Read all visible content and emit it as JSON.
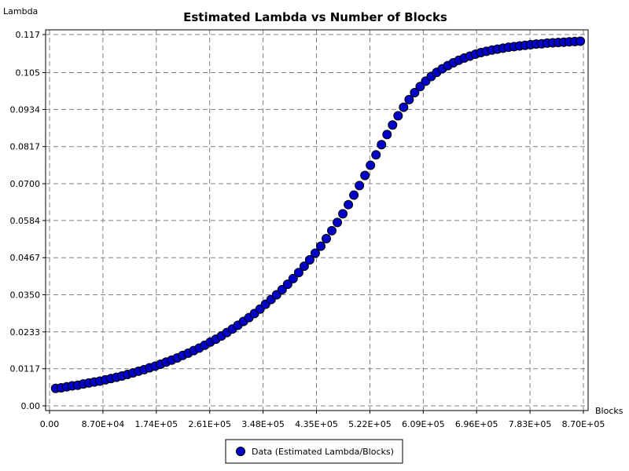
{
  "chart_data": {
    "type": "scatter",
    "title": "Estimated Lambda vs Number of Blocks",
    "xlabel": "Blocks",
    "ylabel": "Lambda",
    "xlim": [
      0,
      870000
    ],
    "ylim": [
      0,
      0.117
    ],
    "x_ticks": [
      {
        "value": 0,
        "label": "0.00"
      },
      {
        "value": 87000,
        "label": "8.70E+04"
      },
      {
        "value": 174000,
        "label": "1.74E+05"
      },
      {
        "value": 261000,
        "label": "2.61E+05"
      },
      {
        "value": 348000,
        "label": "3.48E+05"
      },
      {
        "value": 435000,
        "label": "4.35E+05"
      },
      {
        "value": 522000,
        "label": "5.22E+05"
      },
      {
        "value": 609000,
        "label": "6.09E+05"
      },
      {
        "value": 696000,
        "label": "6.96E+05"
      },
      {
        "value": 783000,
        "label": "7.83E+05"
      },
      {
        "value": 870000,
        "label": "8.70E+05"
      }
    ],
    "y_ticks": [
      {
        "value": 0.0,
        "label": "0.00"
      },
      {
        "value": 0.0117,
        "label": "0.0117"
      },
      {
        "value": 0.0233,
        "label": "0.0233"
      },
      {
        "value": 0.035,
        "label": "0.0350"
      },
      {
        "value": 0.0467,
        "label": "0.0467"
      },
      {
        "value": 0.0584,
        "label": "0.0584"
      },
      {
        "value": 0.07,
        "label": "0.0700"
      },
      {
        "value": 0.0817,
        "label": "0.0817"
      },
      {
        "value": 0.0934,
        "label": "0.0934"
      },
      {
        "value": 0.105,
        "label": "0.105"
      },
      {
        "value": 0.117,
        "label": "0.117"
      }
    ],
    "grid": true,
    "legend_position": "bottom-center",
    "series": [
      {
        "name": "Data (Estimated Lambda/Blocks)",
        "color": "#0000c8",
        "marker": "circle",
        "points": [
          [
            10000,
            0.0055
          ],
          [
            19000,
            0.0057
          ],
          [
            28000,
            0.006
          ],
          [
            37000,
            0.0063
          ],
          [
            46000,
            0.0065
          ],
          [
            55000,
            0.0069
          ],
          [
            64000,
            0.0072
          ],
          [
            73000,
            0.0075
          ],
          [
            82000,
            0.0078
          ],
          [
            91000,
            0.0082
          ],
          [
            100000,
            0.0086
          ],
          [
            109000,
            0.009
          ],
          [
            118000,
            0.0094
          ],
          [
            127000,
            0.0099
          ],
          [
            136000,
            0.0104
          ],
          [
            145000,
            0.0109
          ],
          [
            154000,
            0.0114
          ],
          [
            163000,
            0.012
          ],
          [
            172000,
            0.0125
          ],
          [
            181000,
            0.0131
          ],
          [
            190000,
            0.0138
          ],
          [
            199000,
            0.0144
          ],
          [
            208000,
            0.0151
          ],
          [
            217000,
            0.0159
          ],
          [
            226000,
            0.0166
          ],
          [
            235000,
            0.0174
          ],
          [
            244000,
            0.0182
          ],
          [
            253000,
            0.0191
          ],
          [
            262000,
            0.0201
          ],
          [
            271000,
            0.021
          ],
          [
            280000,
            0.022
          ],
          [
            289000,
            0.0231
          ],
          [
            298000,
            0.0242
          ],
          [
            307000,
            0.0254
          ],
          [
            316000,
            0.0266
          ],
          [
            325000,
            0.0278
          ],
          [
            334000,
            0.0291
          ],
          [
            343000,
            0.0305
          ],
          [
            352000,
            0.032
          ],
          [
            361000,
            0.0335
          ],
          [
            370000,
            0.035
          ],
          [
            379000,
            0.0366
          ],
          [
            388000,
            0.0383
          ],
          [
            397000,
            0.0401
          ],
          [
            406000,
            0.042
          ],
          [
            415000,
            0.044
          ],
          [
            424000,
            0.046
          ],
          [
            433000,
            0.0481
          ],
          [
            442000,
            0.0503
          ],
          [
            451000,
            0.0527
          ],
          [
            460000,
            0.0552
          ],
          [
            469000,
            0.0578
          ],
          [
            478000,
            0.0605
          ],
          [
            487000,
            0.0634
          ],
          [
            496000,
            0.0664
          ],
          [
            505000,
            0.0694
          ],
          [
            514000,
            0.0726
          ],
          [
            523000,
            0.0758
          ],
          [
            532000,
            0.0791
          ],
          [
            541000,
            0.0823
          ],
          [
            550000,
            0.0855
          ],
          [
            559000,
            0.0885
          ],
          [
            568000,
            0.0914
          ],
          [
            577000,
            0.0941
          ],
          [
            586000,
            0.0965
          ],
          [
            595000,
            0.0987
          ],
          [
            604000,
            0.1006
          ],
          [
            613000,
            0.1023
          ],
          [
            622000,
            0.1038
          ],
          [
            631000,
            0.1051
          ],
          [
            640000,
            0.1062
          ],
          [
            649000,
            0.1072
          ],
          [
            658000,
            0.1081
          ],
          [
            667000,
            0.1089
          ],
          [
            676000,
            0.1096
          ],
          [
            685000,
            0.1102
          ],
          [
            694000,
            0.1108
          ],
          [
            703000,
            0.1113
          ],
          [
            712000,
            0.1117
          ],
          [
            721000,
            0.1121
          ],
          [
            730000,
            0.1124
          ],
          [
            739000,
            0.1127
          ],
          [
            748000,
            0.113
          ],
          [
            757000,
            0.1132
          ],
          [
            766000,
            0.1134
          ],
          [
            775000,
            0.1136
          ],
          [
            784000,
            0.1138
          ],
          [
            793000,
            0.114
          ],
          [
            802000,
            0.1141
          ],
          [
            811000,
            0.1143
          ],
          [
            820000,
            0.1144
          ],
          [
            829000,
            0.1145
          ],
          [
            838000,
            0.1146
          ],
          [
            847000,
            0.1147
          ],
          [
            856000,
            0.1148
          ],
          [
            865000,
            0.1149
          ]
        ]
      }
    ]
  }
}
